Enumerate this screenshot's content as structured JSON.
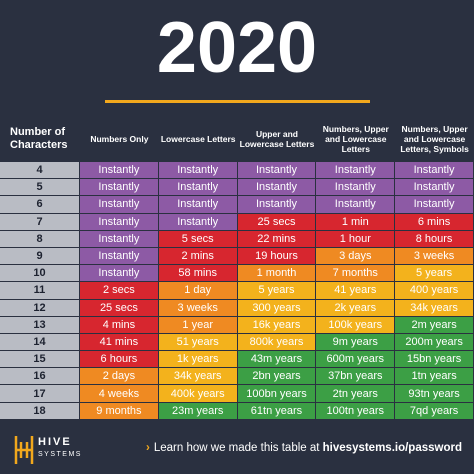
{
  "title": "2020",
  "table": {
    "header": [
      "Number of Characters",
      "Numbers Only",
      "Lowercase Letters",
      "Upper and Lowercase Letters",
      "Numbers, Upper and Lowercase Letters",
      "Numbers, Upper and Lowercase Letters, Symbols"
    ],
    "rows": [
      [
        "4",
        "Instantly",
        "Instantly",
        "Instantly",
        "Instantly",
        "Instantly"
      ],
      [
        "5",
        "Instantly",
        "Instantly",
        "Instantly",
        "Instantly",
        "Instantly"
      ],
      [
        "6",
        "Instantly",
        "Instantly",
        "Instantly",
        "Instantly",
        "Instantly"
      ],
      [
        "7",
        "Instantly",
        "Instantly",
        "25 secs",
        "1 min",
        "6 mins"
      ],
      [
        "8",
        "Instantly",
        "5 secs",
        "22 mins",
        "1 hour",
        "8 hours"
      ],
      [
        "9",
        "Instantly",
        "2 mins",
        "19 hours",
        "3 days",
        "3 weeks"
      ],
      [
        "10",
        "Instantly",
        "58 mins",
        "1 month",
        "7 months",
        "5 years"
      ],
      [
        "11",
        "2 secs",
        "1 day",
        "5 years",
        "41 years",
        "400 years"
      ],
      [
        "12",
        "25 secs",
        "3 weeks",
        "300 years",
        "2k years",
        "34k years"
      ],
      [
        "13",
        "4 mins",
        "1 year",
        "16k years",
        "100k years",
        "2m years"
      ],
      [
        "14",
        "41 mins",
        "51 years",
        "800k years",
        "9m years",
        "200m years"
      ],
      [
        "15",
        "6 hours",
        "1k years",
        "43m years",
        "600m years",
        "15bn years"
      ],
      [
        "16",
        "2 days",
        "34k years",
        "2bn years",
        "37bn years",
        "1tn years"
      ],
      [
        "17",
        "4 weeks",
        "400k years",
        "100bn years",
        "2tn years",
        "93tn years"
      ],
      [
        "18",
        "9 months",
        "23m years",
        "61tn years",
        "100tn years",
        "7qd years"
      ]
    ],
    "cell_colors": [
      [
        "#8d5aa5",
        "#8d5aa5",
        "#8d5aa5",
        "#8d5aa5",
        "#8d5aa5"
      ],
      [
        "#8d5aa5",
        "#8d5aa5",
        "#8d5aa5",
        "#8d5aa5",
        "#8d5aa5"
      ],
      [
        "#8d5aa5",
        "#8d5aa5",
        "#8d5aa5",
        "#8d5aa5",
        "#8d5aa5"
      ],
      [
        "#8d5aa5",
        "#8d5aa5",
        "#d7262f",
        "#d7262f",
        "#d7262f"
      ],
      [
        "#8d5aa5",
        "#d7262f",
        "#d7262f",
        "#d7262f",
        "#d7262f"
      ],
      [
        "#8d5aa5",
        "#d7262f",
        "#d7262f",
        "#ef8a22",
        "#ef8a22"
      ],
      [
        "#8d5aa5",
        "#d7262f",
        "#ef8a22",
        "#ef8a22",
        "#f3b21c"
      ],
      [
        "#d7262f",
        "#ef8a22",
        "#f3b21c",
        "#f3b21c",
        "#f3b21c"
      ],
      [
        "#d7262f",
        "#ef8a22",
        "#f3b21c",
        "#f3b21c",
        "#f3b21c"
      ],
      [
        "#d7262f",
        "#ef8a22",
        "#f3b21c",
        "#f3b21c",
        "#3c9f45"
      ],
      [
        "#d7262f",
        "#f3b21c",
        "#f3b21c",
        "#3c9f45",
        "#3c9f45"
      ],
      [
        "#d7262f",
        "#f3b21c",
        "#3c9f45",
        "#3c9f45",
        "#3c9f45"
      ],
      [
        "#ef8a22",
        "#f3b21c",
        "#3c9f45",
        "#3c9f45",
        "#3c9f45"
      ],
      [
        "#ef8a22",
        "#f3b21c",
        "#3c9f45",
        "#3c9f45",
        "#3c9f45"
      ],
      [
        "#ef8a22",
        "#3c9f45",
        "#3c9f45",
        "#3c9f45",
        "#3c9f45"
      ]
    ]
  },
  "footer": {
    "logo_name": "HIVE",
    "logo_sub": "SYSTEMS",
    "text": "Learn how we made this table at ",
    "link": "hivesystems.io/password"
  }
}
